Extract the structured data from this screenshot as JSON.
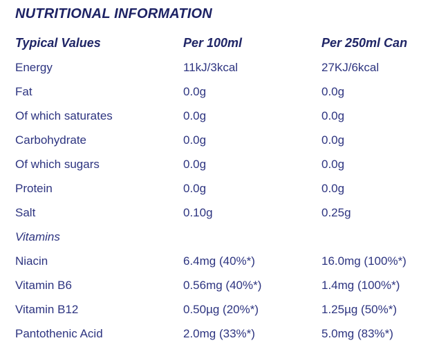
{
  "page": {
    "title": "NUTRITIONAL INFORMATION"
  },
  "table": {
    "headers": {
      "column1": "Typical Values",
      "column2": "Per 100ml",
      "column3": "Per 250ml Can"
    },
    "rows": [
      {
        "label": "Energy",
        "per_100ml": "11kJ/3kcal",
        "per_250ml_can": "27KJ/6kcal"
      },
      {
        "label": "Fat",
        "per_100ml": "0.0g",
        "per_250ml_can": "0.0g"
      },
      {
        "label": "Of which saturates",
        "per_100ml": "0.0g",
        "per_250ml_can": "0.0g"
      },
      {
        "label": "Carbohydrate",
        "per_100ml": "0.0g",
        "per_250ml_can": "0.0g"
      },
      {
        "label": "Of which sugars",
        "per_100ml": "0.0g",
        "per_250ml_can": "0.0g"
      },
      {
        "label": "Protein",
        "per_100ml": "0.0g",
        "per_250ml_can": "0.0g"
      },
      {
        "label": "Salt",
        "per_100ml": "0.10g",
        "per_250ml_can": "0.25g"
      },
      {
        "label": "Vitamins",
        "per_100ml": "",
        "per_250ml_can": "",
        "type": "section"
      },
      {
        "label": "Niacin",
        "per_100ml": "6.4mg (40%*)",
        "per_250ml_can": "16.0mg (100%*)"
      },
      {
        "label": "Vitamin B6",
        "per_100ml": "0.56mg (40%*)",
        "per_250ml_can": "1.4mg (100%*)"
      },
      {
        "label": "Vitamin B12",
        "per_100ml": "0.50µg (20%*)",
        "per_250ml_can": "1.25µg (50%*)"
      },
      {
        "label": "Pantothenic Acid",
        "per_100ml": "2.0mg (33%*)",
        "per_250ml_can": "5.0mg (83%*)"
      }
    ]
  },
  "colors": {
    "heading": "#1d2264",
    "body_text": "#2d3480",
    "background": "#ffffff"
  }
}
